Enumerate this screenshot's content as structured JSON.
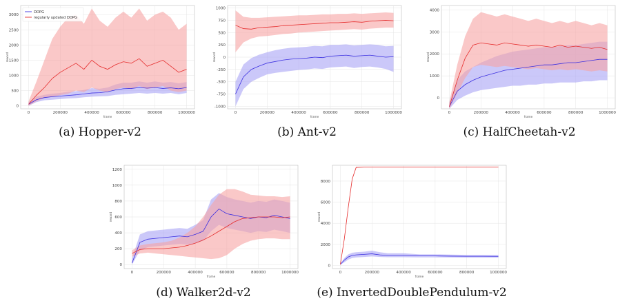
{
  "colors": {
    "ddpg_line": "#3b2fe0",
    "ddpg_band": "#a9a4f5",
    "reg_line": "#e52b2b",
    "reg_band": "#f7a3a3"
  },
  "chart_data": [
    {
      "id": "hopper",
      "type": "line",
      "caption": "(a)  Hopper-v2",
      "xlabel": "frame",
      "ylabel": "reward",
      "xlim": [
        -50000,
        1050000
      ],
      "ylim": [
        -100,
        3300
      ],
      "xticks": [
        0,
        200000,
        400000,
        600000,
        800000,
        1000000
      ],
      "yticks": [
        0,
        500,
        1000,
        1500,
        2000,
        2500,
        3000
      ],
      "grid": true,
      "legend": {
        "position": "top-left",
        "entries": [
          "DDPG",
          "regularly updated DDPG"
        ]
      },
      "series": [
        {
          "name": "DDPG",
          "color_key": "ddpg",
          "x": [
            0,
            50000,
            100000,
            150000,
            200000,
            250000,
            300000,
            350000,
            400000,
            450000,
            500000,
            550000,
            600000,
            650000,
            700000,
            750000,
            800000,
            850000,
            900000,
            950000,
            1000000
          ],
          "y": [
            50,
            200,
            270,
            300,
            320,
            340,
            360,
            390,
            420,
            430,
            460,
            520,
            560,
            570,
            600,
            580,
            600,
            570,
            590,
            560,
            600
          ],
          "lower": [
            0,
            120,
            180,
            200,
            220,
            240,
            250,
            280,
            300,
            310,
            320,
            360,
            380,
            400,
            420,
            400,
            420,
            400,
            420,
            380,
            420
          ],
          "upper": [
            120,
            300,
            360,
            400,
            420,
            460,
            480,
            520,
            580,
            560,
            600,
            700,
            760,
            760,
            800,
            760,
            800,
            760,
            780,
            740,
            780
          ]
        },
        {
          "name": "regularly updated DDPG",
          "color_key": "reg",
          "x": [
            0,
            50000,
            100000,
            150000,
            200000,
            250000,
            300000,
            350000,
            400000,
            450000,
            500000,
            550000,
            600000,
            650000,
            700000,
            750000,
            800000,
            850000,
            900000,
            950000,
            1000000
          ],
          "y": [
            50,
            350,
            600,
            900,
            1100,
            1250,
            1400,
            1200,
            1500,
            1300,
            1200,
            1350,
            1450,
            1400,
            1550,
            1300,
            1400,
            1500,
            1300,
            1100,
            1200
          ],
          "lower": [
            0,
            150,
            250,
            300,
            350,
            400,
            500,
            450,
            600,
            500,
            450,
            550,
            600,
            550,
            650,
            550,
            600,
            650,
            500,
            450,
            500
          ],
          "upper": [
            150,
            800,
            1500,
            2200,
            2600,
            2900,
            3000,
            2700,
            3200,
            2800,
            2600,
            2900,
            3100,
            2900,
            3200,
            2800,
            3000,
            3100,
            2900,
            2500,
            2700
          ]
        }
      ]
    },
    {
      "id": "ant",
      "type": "line",
      "caption": "(b)  Ant-v2",
      "xlabel": "frame",
      "ylabel": "reward",
      "xlim": [
        -50000,
        1050000
      ],
      "ylim": [
        -1050,
        1050
      ],
      "xticks": [
        0,
        200000,
        400000,
        600000,
        800000,
        1000000
      ],
      "yticks": [
        -1000,
        -750,
        -500,
        -250,
        0,
        250,
        500,
        750,
        1000
      ],
      "grid": true,
      "series": [
        {
          "name": "DDPG",
          "color_key": "ddpg",
          "x": [
            0,
            50000,
            100000,
            150000,
            200000,
            250000,
            300000,
            350000,
            400000,
            450000,
            500000,
            550000,
            600000,
            650000,
            700000,
            750000,
            800000,
            850000,
            900000,
            950000,
            1000000
          ],
          "y": [
            -750,
            -400,
            -250,
            -180,
            -120,
            -90,
            -60,
            -40,
            -30,
            -20,
            0,
            -10,
            20,
            30,
            40,
            20,
            30,
            40,
            20,
            0,
            10
          ],
          "lower": [
            -1000,
            -650,
            -500,
            -420,
            -350,
            -320,
            -300,
            -280,
            -260,
            -250,
            -230,
            -240,
            -210,
            -200,
            -190,
            -220,
            -200,
            -190,
            -210,
            -240,
            -300
          ],
          "upper": [
            -500,
            -150,
            -20,
            50,
            100,
            140,
            170,
            190,
            200,
            210,
            230,
            220,
            250,
            250,
            260,
            240,
            250,
            260,
            250,
            220,
            230
          ]
        },
        {
          "name": "regularly updated DDPG",
          "color_key": "reg",
          "x": [
            0,
            50000,
            100000,
            150000,
            200000,
            250000,
            300000,
            350000,
            400000,
            450000,
            500000,
            550000,
            600000,
            650000,
            700000,
            750000,
            800000,
            850000,
            900000,
            950000,
            1000000
          ],
          "y": [
            650,
            580,
            570,
            600,
            610,
            620,
            640,
            650,
            660,
            670,
            680,
            690,
            700,
            700,
            710,
            720,
            710,
            730,
            740,
            750,
            740
          ],
          "lower": [
            100,
            300,
            380,
            420,
            430,
            450,
            470,
            480,
            500,
            510,
            520,
            530,
            540,
            550,
            560,
            570,
            560,
            580,
            590,
            600,
            600
          ],
          "upper": [
            950,
            820,
            800,
            800,
            810,
            820,
            830,
            840,
            850,
            850,
            860,
            870,
            870,
            880,
            880,
            890,
            880,
            890,
            900,
            910,
            900
          ]
        }
      ]
    },
    {
      "id": "halfcheetah",
      "type": "line",
      "caption": "(c)  HalfCheetah-v2",
      "xlabel": "frame",
      "ylabel": "reward",
      "xlim": [
        -50000,
        1050000
      ],
      "ylim": [
        -500,
        4200
      ],
      "xticks": [
        0,
        200000,
        400000,
        600000,
        800000,
        1000000
      ],
      "yticks": [
        0,
        1000,
        2000,
        3000,
        4000
      ],
      "grid": true,
      "series": [
        {
          "name": "DDPG",
          "color_key": "ddpg",
          "x": [
            0,
            50000,
            100000,
            150000,
            200000,
            250000,
            300000,
            350000,
            400000,
            450000,
            500000,
            550000,
            600000,
            650000,
            700000,
            750000,
            800000,
            850000,
            900000,
            950000,
            1000000
          ],
          "y": [
            -400,
            300,
            600,
            800,
            950,
            1050,
            1150,
            1250,
            1300,
            1350,
            1400,
            1450,
            1500,
            1500,
            1550,
            1600,
            1600,
            1650,
            1700,
            1750,
            1750
          ],
          "lower": [
            -500,
            -100,
            100,
            250,
            350,
            400,
            450,
            500,
            550,
            550,
            600,
            600,
            650,
            650,
            700,
            700,
            700,
            750,
            750,
            800,
            800
          ],
          "upper": [
            -200,
            800,
            1200,
            1400,
            1600,
            1750,
            1900,
            2000,
            2100,
            2150,
            2200,
            2250,
            2300,
            2300,
            2350,
            2400,
            2400,
            2450,
            2500,
            2550,
            2550
          ]
        },
        {
          "name": "regularly updated DDPG",
          "color_key": "reg",
          "x": [
            0,
            50000,
            100000,
            150000,
            200000,
            250000,
            300000,
            350000,
            400000,
            450000,
            500000,
            550000,
            600000,
            650000,
            700000,
            750000,
            800000,
            850000,
            900000,
            950000,
            1000000
          ],
          "y": [
            -400,
            800,
            1800,
            2400,
            2500,
            2450,
            2400,
            2500,
            2450,
            2400,
            2350,
            2400,
            2350,
            2300,
            2400,
            2300,
            2350,
            2300,
            2250,
            2300,
            2200
          ],
          "lower": [
            -500,
            200,
            900,
            1400,
            1500,
            1450,
            1400,
            1450,
            1400,
            1350,
            1300,
            1350,
            1300,
            1250,
            1300,
            1250,
            1300,
            1250,
            1200,
            1250,
            1200
          ],
          "upper": [
            -200,
            1500,
            2800,
            3600,
            3900,
            3800,
            3700,
            3800,
            3700,
            3600,
            3500,
            3600,
            3500,
            3400,
            3500,
            3400,
            3500,
            3400,
            3300,
            3400,
            3300
          ]
        }
      ]
    },
    {
      "id": "walker",
      "type": "line",
      "caption": "(d)  Walker2d-v2",
      "xlabel": "frame",
      "ylabel": "reward",
      "xlim": [
        -50000,
        1050000
      ],
      "ylim": [
        -50,
        1250
      ],
      "xticks": [
        0,
        200000,
        400000,
        600000,
        800000,
        1000000
      ],
      "yticks": [
        0,
        200,
        400,
        600,
        800,
        1000,
        1200
      ],
      "grid": true,
      "series": [
        {
          "name": "DDPG",
          "color_key": "ddpg",
          "x": [
            0,
            50000,
            100000,
            150000,
            200000,
            250000,
            300000,
            350000,
            400000,
            450000,
            500000,
            550000,
            600000,
            650000,
            700000,
            750000,
            800000,
            850000,
            900000,
            950000,
            1000000
          ],
          "y": [
            20,
            280,
            320,
            330,
            340,
            350,
            360,
            350,
            380,
            420,
            600,
            700,
            640,
            620,
            600,
            580,
            600,
            590,
            620,
            600,
            580
          ],
          "lower": [
            0,
            180,
            220,
            230,
            240,
            250,
            260,
            250,
            270,
            300,
            420,
            500,
            460,
            440,
            420,
            400,
            420,
            410,
            440,
            420,
            400
          ],
          "upper": [
            80,
            380,
            420,
            430,
            440,
            450,
            460,
            450,
            500,
            560,
            820,
            900,
            850,
            820,
            800,
            780,
            800,
            790,
            820,
            800,
            780
          ]
        },
        {
          "name": "regularly updated DDPG",
          "color_key": "reg",
          "x": [
            0,
            50000,
            100000,
            150000,
            200000,
            250000,
            300000,
            350000,
            400000,
            450000,
            500000,
            550000,
            600000,
            650000,
            700000,
            750000,
            800000,
            850000,
            900000,
            950000,
            1000000
          ],
          "y": [
            140,
            190,
            200,
            200,
            200,
            210,
            220,
            240,
            270,
            310,
            360,
            420,
            480,
            540,
            580,
            590,
            600,
            600,
            600,
            590,
            600
          ],
          "lower": [
            100,
            140,
            150,
            140,
            130,
            120,
            110,
            100,
            90,
            80,
            70,
            80,
            120,
            200,
            260,
            300,
            320,
            330,
            330,
            320,
            320
          ],
          "upper": [
            180,
            240,
            260,
            270,
            280,
            300,
            340,
            400,
            480,
            600,
            750,
            880,
            950,
            950,
            920,
            880,
            870,
            860,
            860,
            850,
            860
          ]
        }
      ]
    },
    {
      "id": "invdoublependulum",
      "type": "line",
      "caption": "(e)  InvertedDoublePendulum-v2",
      "xlabel": "frame",
      "ylabel": "reward",
      "xlim": [
        -50000,
        1050000
      ],
      "ylim": [
        -300,
        9500
      ],
      "xticks": [
        0,
        200000,
        400000,
        600000,
        800000,
        1000000
      ],
      "yticks": [
        0,
        2000,
        4000,
        6000,
        8000
      ],
      "grid": true,
      "series": [
        {
          "name": "DDPG",
          "color_key": "ddpg",
          "x": [
            0,
            25000,
            50000,
            75000,
            100000,
            150000,
            200000,
            250000,
            300000,
            400000,
            500000,
            600000,
            700000,
            800000,
            900000,
            1000000
          ],
          "y": [
            100,
            500,
            800,
            950,
            1000,
            1050,
            1100,
            1000,
            950,
            950,
            900,
            900,
            880,
            870,
            870,
            860
          ],
          "lower": [
            50,
            300,
            550,
            700,
            750,
            800,
            850,
            800,
            780,
            780,
            760,
            760,
            750,
            740,
            740,
            740
          ],
          "upper": [
            150,
            700,
            1050,
            1200,
            1250,
            1300,
            1400,
            1250,
            1150,
            1150,
            1050,
            1050,
            1020,
            1000,
            1000,
            990
          ]
        },
        {
          "name": "regularly updated DDPG",
          "color_key": "reg",
          "x": [
            0,
            25000,
            50000,
            75000,
            100000,
            150000,
            200000,
            300000,
            400000,
            500000,
            600000,
            700000,
            800000,
            900000,
            1000000
          ],
          "y": [
            100,
            2500,
            5500,
            8200,
            9300,
            9320,
            9320,
            9320,
            9320,
            9320,
            9320,
            9320,
            9320,
            9320,
            9320
          ],
          "lower": [
            100,
            2400,
            5400,
            8100,
            9300,
            9320,
            9320,
            9320,
            9320,
            9320,
            9320,
            9320,
            9320,
            9320,
            9320
          ],
          "upper": [
            100,
            2600,
            5600,
            8300,
            9300,
            9320,
            9320,
            9320,
            9320,
            9320,
            9320,
            9320,
            9320,
            9320,
            9320
          ]
        }
      ]
    }
  ]
}
